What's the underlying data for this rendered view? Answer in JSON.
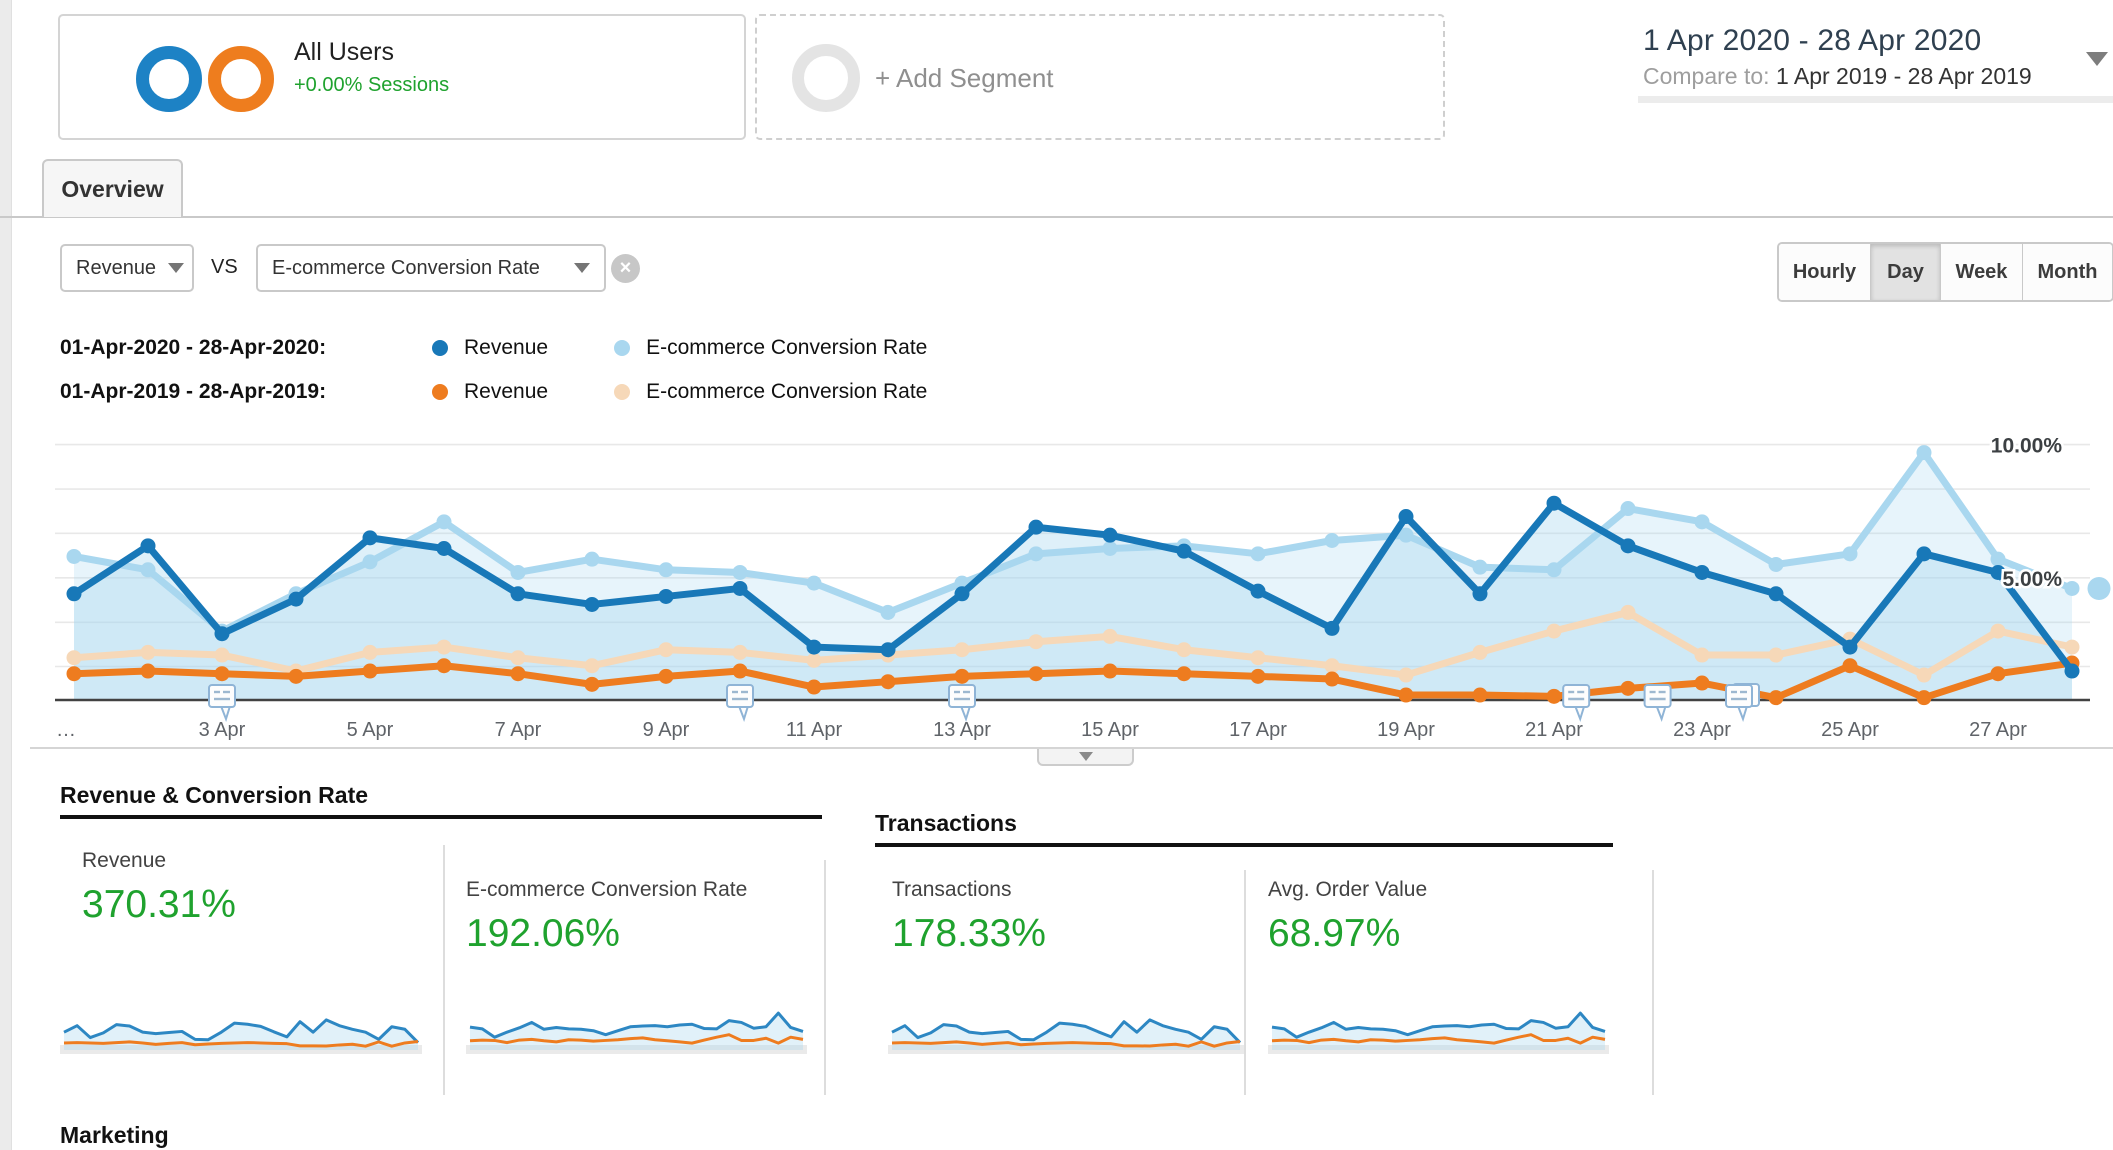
{
  "segment_bar": {
    "all_users": {
      "title": "All Users",
      "subtitle": "+0.00% Sessions"
    },
    "add_segment_label": "+ Add Segment"
  },
  "date_range": {
    "primary": "1 Apr 2020 - 28 Apr 2020",
    "compare_prefix": "Compare to:",
    "compare": "1 Apr 2019 - 28 Apr 2019"
  },
  "tabs": {
    "overview": "Overview"
  },
  "controls": {
    "metric_a": "Revenue",
    "vs_label": "vs",
    "metric_b": "E-commerce Conversion Rate",
    "clear_label": "×",
    "granularity": [
      "Hourly",
      "Day",
      "Week",
      "Month"
    ],
    "granularity_active": "Day"
  },
  "legend": [
    {
      "range": "01-Apr-2020 - 28-Apr-2020:",
      "items": [
        {
          "label": "Revenue",
          "color": "#1878b8"
        },
        {
          "label": "E-commerce Conversion Rate",
          "color": "#a9d7ef"
        }
      ]
    },
    {
      "range": "01-Apr-2019 - 28-Apr-2019:",
      "items": [
        {
          "label": "Revenue",
          "color": "#ee7c1f"
        },
        {
          "label": "E-commerce Conversion Rate",
          "color": "#f6d8b8"
        }
      ]
    }
  ],
  "chart_data": {
    "type": "line",
    "x_unit": "day of April 2020/2019",
    "x": [
      1,
      2,
      3,
      4,
      5,
      6,
      7,
      8,
      9,
      10,
      11,
      12,
      13,
      14,
      15,
      16,
      17,
      18,
      19,
      20,
      21,
      22,
      23,
      24,
      25,
      26,
      27,
      28
    ],
    "x_ticks": [
      {
        "label": "…",
        "day": 0.9
      },
      {
        "label": "3 Apr",
        "day": 3
      },
      {
        "label": "5 Apr",
        "day": 5
      },
      {
        "label": "7 Apr",
        "day": 7
      },
      {
        "label": "9 Apr",
        "day": 9
      },
      {
        "label": "11 Apr",
        "day": 11
      },
      {
        "label": "13 Apr",
        "day": 13
      },
      {
        "label": "15 Apr",
        "day": 15
      },
      {
        "label": "17 Apr",
        "day": 17
      },
      {
        "label": "19 Apr",
        "day": 19
      },
      {
        "label": "21 Apr",
        "day": 21
      },
      {
        "label": "23 Apr",
        "day": 23
      },
      {
        "label": "25 Apr",
        "day": 25
      },
      {
        "label": "27 Apr",
        "day": 27
      }
    ],
    "y_axis_labels": [
      {
        "label": "10.00%",
        "pct": 10
      },
      {
        "label": "5.00%",
        "pct": 5
      }
    ],
    "ylim": [
      0,
      11
    ],
    "unit": "%",
    "grid": true,
    "series": [
      {
        "key": "revenue_2020",
        "name": "Revenue (01-Apr-2020 - 28-Apr-2020)",
        "color": "#1878b8",
        "values": [
          4.4,
          6.2,
          2.9,
          4.2,
          6.5,
          6.1,
          4.4,
          4.0,
          4.3,
          4.6,
          2.4,
          2.3,
          4.4,
          6.9,
          6.6,
          6.0,
          4.5,
          3.1,
          7.3,
          4.4,
          7.8,
          6.2,
          5.2,
          4.4,
          2.4,
          5.9,
          5.2,
          1.5
        ]
      },
      {
        "key": "cr_2020",
        "name": "E-commerce Conversion Rate (01-Apr-2020 - 28-Apr-2020)",
        "color": "#a9d7ef",
        "values": [
          5.8,
          5.3,
          3.0,
          4.4,
          5.6,
          7.1,
          5.2,
          5.7,
          5.3,
          5.2,
          4.8,
          3.7,
          4.8,
          5.9,
          6.1,
          6.2,
          5.9,
          6.4,
          6.6,
          5.4,
          5.3,
          7.6,
          7.1,
          5.5,
          5.9,
          9.7,
          5.7,
          4.6
        ]
      },
      {
        "key": "revenue_2019",
        "name": "Revenue (01-Apr-2019 - 28-Apr-2019)",
        "color": "#ee7c1f",
        "values": [
          1.4,
          1.5,
          1.4,
          1.3,
          1.5,
          1.7,
          1.4,
          1.0,
          1.3,
          1.5,
          0.9,
          1.1,
          1.3,
          1.4,
          1.5,
          1.4,
          1.3,
          1.2,
          0.6,
          0.6,
          0.55,
          0.85,
          1.05,
          0.5,
          1.7,
          0.5,
          1.4,
          1.8
        ]
      },
      {
        "key": "cr_2019",
        "name": "E-commerce Conversion Rate (01-Apr-2019 - 28-Apr-2019)",
        "color": "#f6d8b8",
        "values": [
          2.0,
          2.2,
          2.1,
          1.5,
          2.2,
          2.4,
          2.0,
          1.7,
          2.3,
          2.2,
          1.9,
          2.1,
          2.3,
          2.6,
          2.8,
          2.3,
          2.0,
          1.7,
          1.35,
          2.2,
          3.0,
          3.7,
          2.1,
          2.1,
          2.7,
          1.35,
          3.0,
          2.4
        ]
      }
    ],
    "annotation_flags": [
      {
        "day": 3
      },
      {
        "day": 10
      },
      {
        "day": 13
      },
      {
        "day": 21.3
      },
      {
        "day": 22.4
      },
      {
        "day": 23.5,
        "double": true
      }
    ]
  },
  "sections": [
    {
      "heading": "Revenue & Conversion Rate",
      "metrics": [
        {
          "label": "Revenue",
          "value": "370.31%"
        },
        {
          "label": "E-commerce Conversion Rate",
          "value": "192.06%"
        }
      ]
    },
    {
      "heading": "Transactions",
      "metrics": [
        {
          "label": "Transactions",
          "value": "178.33%"
        },
        {
          "label": "Avg. Order Value",
          "value": "68.97%"
        }
      ]
    }
  ],
  "sparklines": [
    {
      "metric": "Revenue",
      "blue_series": "revenue_2020",
      "orange_series": "revenue_2019"
    },
    {
      "metric": "E-commerce Conversion Rate",
      "blue_series": "cr_2020",
      "orange_series": "cr_2019"
    },
    {
      "metric": "Transactions",
      "blue_series": "revenue_2020",
      "orange_series": "revenue_2019"
    },
    {
      "metric": "Avg. Order Value",
      "blue_series": "cr_2020",
      "orange_series": "cr_2019"
    }
  ],
  "next_section_heading": "Marketing"
}
